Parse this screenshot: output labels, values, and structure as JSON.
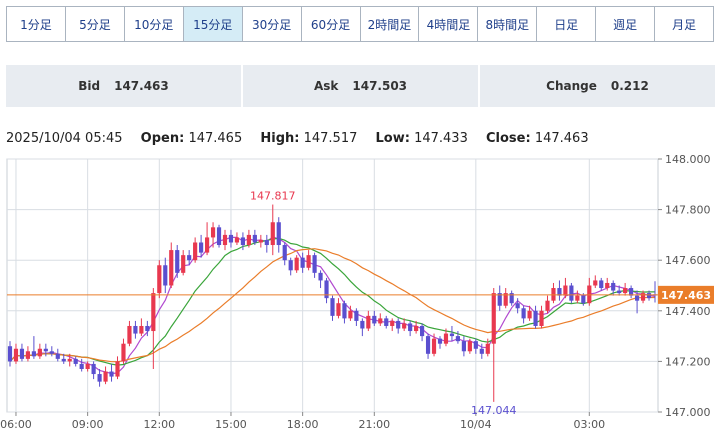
{
  "timeframe_tabs": [
    {
      "label": "1分足",
      "active": false
    },
    {
      "label": "5分足",
      "active": false
    },
    {
      "label": "10分足",
      "active": false
    },
    {
      "label": "15分足",
      "active": true
    },
    {
      "label": "30分足",
      "active": false
    },
    {
      "label": "60分足",
      "active": false
    },
    {
      "label": "2時間足",
      "active": false
    },
    {
      "label": "4時間足",
      "active": false
    },
    {
      "label": "8時間足",
      "active": false
    },
    {
      "label": "日足",
      "active": false
    },
    {
      "label": "週足",
      "active": false
    },
    {
      "label": "月足",
      "active": false
    }
  ],
  "quote": {
    "bid_label": "Bid",
    "bid": "147.463",
    "ask_label": "Ask",
    "ask": "147.503",
    "change_label": "Change",
    "change": "0.212"
  },
  "ohlc": {
    "datetime": "2025/10/04 05:45",
    "open_label": "Open:",
    "open": "147.465",
    "high_label": "High:",
    "high": "147.517",
    "low_label": "Low:",
    "low": "147.433",
    "close_label": "Close:",
    "close": "147.463"
  },
  "colors": {
    "up": "#e8384f",
    "down": "#5a4fcf",
    "ma_short": "#b14ad0",
    "ma_mid": "#3aa53a",
    "ma_long": "#ea7d2a",
    "price_line": "#ea7d2a",
    "grid": "#d8dde3",
    "axis_text": "#555555"
  },
  "chart_data": {
    "type": "candlestick",
    "title": "",
    "ylim": [
      147.0,
      148.0
    ],
    "y_ticks": [
      "148.000",
      "147.800",
      "147.600",
      "147.400",
      "147.200",
      "147.000"
    ],
    "x_tick_labels": [
      "06:00",
      "09:00",
      "12:00",
      "15:00",
      "18:00",
      "21:00",
      "10/04",
      "03:00"
    ],
    "annotations": {
      "high_label": "147.817",
      "low_label": "147.044"
    },
    "current_price": "147.463",
    "grid": true,
    "series_moving_averages": [
      "short",
      "mid",
      "long"
    ],
    "candles": [
      [
        147.26,
        147.2,
        147.28,
        147.18
      ],
      [
        147.2,
        147.25,
        147.27,
        147.19
      ],
      [
        147.25,
        147.21,
        147.27,
        147.2
      ],
      [
        147.21,
        147.24,
        147.26,
        147.2
      ],
      [
        147.24,
        147.22,
        147.3,
        147.21
      ],
      [
        147.22,
        147.25,
        147.27,
        147.21
      ],
      [
        147.25,
        147.24,
        147.27,
        147.22
      ],
      [
        147.24,
        147.23,
        147.26,
        147.22
      ],
      [
        147.23,
        147.21,
        147.25,
        147.2
      ],
      [
        147.21,
        147.2,
        147.23,
        147.19
      ],
      [
        147.2,
        147.21,
        147.23,
        147.18
      ],
      [
        147.21,
        147.19,
        147.22,
        147.18
      ],
      [
        147.19,
        147.17,
        147.21,
        147.16
      ],
      [
        147.17,
        147.19,
        147.2,
        147.16
      ],
      [
        147.19,
        147.15,
        147.2,
        147.13
      ],
      [
        147.15,
        147.12,
        147.17,
        147.1
      ],
      [
        147.12,
        147.16,
        147.18,
        147.11
      ],
      [
        147.16,
        147.14,
        147.19,
        147.12
      ],
      [
        147.14,
        147.2,
        147.22,
        147.13
      ],
      [
        147.2,
        147.27,
        147.29,
        147.19
      ],
      [
        147.27,
        147.34,
        147.36,
        147.26
      ],
      [
        147.34,
        147.31,
        147.36,
        147.29
      ],
      [
        147.31,
        147.34,
        147.37,
        147.3
      ],
      [
        147.34,
        147.32,
        147.36,
        147.3
      ],
      [
        147.32,
        147.47,
        147.49,
        147.17
      ],
      [
        147.47,
        147.58,
        147.6,
        147.45
      ],
      [
        147.58,
        147.5,
        147.61,
        147.47
      ],
      [
        147.5,
        147.64,
        147.67,
        147.49
      ],
      [
        147.64,
        147.55,
        147.66,
        147.53
      ],
      [
        147.55,
        147.62,
        147.64,
        147.54
      ],
      [
        147.62,
        147.6,
        147.64,
        147.58
      ],
      [
        147.6,
        147.67,
        147.69,
        147.59
      ],
      [
        147.67,
        147.63,
        147.7,
        147.61
      ],
      [
        147.63,
        147.69,
        147.75,
        147.62
      ],
      [
        147.69,
        147.73,
        147.75,
        147.65
      ],
      [
        147.73,
        147.66,
        147.74,
        147.65
      ],
      [
        147.66,
        147.7,
        147.72,
        147.64
      ],
      [
        147.7,
        147.67,
        147.72,
        147.65
      ],
      [
        147.67,
        147.69,
        147.71,
        147.66
      ],
      [
        147.69,
        147.66,
        147.71,
        147.64
      ],
      [
        147.66,
        147.7,
        147.72,
        147.65
      ],
      [
        147.7,
        147.67,
        147.72,
        147.66
      ],
      [
        147.67,
        147.68,
        147.7,
        147.65
      ],
      [
        147.68,
        147.66,
        147.7,
        147.63
      ],
      [
        147.66,
        147.75,
        147.82,
        147.62
      ],
      [
        147.75,
        147.66,
        147.77,
        147.63
      ],
      [
        147.66,
        147.6,
        147.67,
        147.58
      ],
      [
        147.6,
        147.56,
        147.61,
        147.54
      ],
      [
        147.56,
        147.61,
        147.62,
        147.55
      ],
      [
        147.61,
        147.57,
        147.63,
        147.55
      ],
      [
        147.57,
        147.62,
        147.64,
        147.56
      ],
      [
        147.62,
        147.55,
        147.63,
        147.53
      ],
      [
        147.55,
        147.52,
        147.56,
        147.49
      ],
      [
        147.52,
        147.45,
        147.53,
        147.43
      ],
      [
        147.45,
        147.38,
        147.46,
        147.36
      ],
      [
        147.38,
        147.43,
        147.45,
        147.37
      ],
      [
        147.43,
        147.37,
        147.44,
        147.35
      ],
      [
        147.37,
        147.4,
        147.42,
        147.36
      ],
      [
        147.4,
        147.36,
        147.41,
        147.34
      ],
      [
        147.36,
        147.33,
        147.37,
        147.3
      ],
      [
        147.33,
        147.38,
        147.4,
        147.32
      ],
      [
        147.38,
        147.35,
        147.4,
        147.34
      ],
      [
        147.35,
        147.37,
        147.39,
        147.34
      ],
      [
        147.37,
        147.34,
        147.38,
        147.33
      ],
      [
        147.34,
        147.36,
        147.37,
        147.32
      ],
      [
        147.36,
        147.33,
        147.37,
        147.31
      ],
      [
        147.33,
        147.35,
        147.37,
        147.32
      ],
      [
        147.35,
        147.32,
        147.36,
        147.3
      ],
      [
        147.32,
        147.34,
        147.36,
        147.31
      ],
      [
        147.34,
        147.3,
        147.35,
        147.28
      ],
      [
        147.3,
        147.23,
        147.31,
        147.21
      ],
      [
        147.23,
        147.29,
        147.31,
        147.22
      ],
      [
        147.29,
        147.27,
        147.3,
        147.25
      ],
      [
        147.27,
        147.31,
        147.33,
        147.26
      ],
      [
        147.31,
        147.3,
        147.34,
        147.28
      ],
      [
        147.3,
        147.28,
        147.32,
        147.27
      ],
      [
        147.28,
        147.24,
        147.3,
        147.22
      ],
      [
        147.24,
        147.28,
        147.29,
        147.23
      ],
      [
        147.28,
        147.25,
        147.29,
        147.23
      ],
      [
        147.25,
        147.23,
        147.27,
        147.21
      ],
      [
        147.23,
        147.27,
        147.29,
        147.22
      ],
      [
        147.27,
        147.47,
        147.49,
        147.04
      ],
      [
        147.47,
        147.42,
        147.5,
        147.4
      ],
      [
        147.42,
        147.47,
        147.49,
        147.41
      ],
      [
        147.47,
        147.43,
        147.48,
        147.42
      ],
      [
        147.43,
        147.41,
        147.45,
        147.39
      ],
      [
        147.41,
        147.37,
        147.42,
        147.35
      ],
      [
        147.37,
        147.4,
        147.42,
        147.36
      ],
      [
        147.4,
        147.34,
        147.42,
        147.33
      ],
      [
        147.34,
        147.4,
        147.42,
        147.33
      ],
      [
        147.4,
        147.44,
        147.46,
        147.39
      ],
      [
        147.44,
        147.49,
        147.51,
        147.43
      ],
      [
        147.49,
        147.46,
        147.52,
        147.44
      ],
      [
        147.46,
        147.5,
        147.53,
        147.45
      ],
      [
        147.5,
        147.44,
        147.51,
        147.43
      ],
      [
        147.44,
        147.46,
        147.48,
        147.43
      ],
      [
        147.46,
        147.43,
        147.47,
        147.42
      ],
      [
        147.43,
        147.5,
        147.53,
        147.42
      ],
      [
        147.5,
        147.52,
        147.54,
        147.49
      ],
      [
        147.52,
        147.49,
        147.53,
        147.48
      ],
      [
        147.49,
        147.51,
        147.53,
        147.48
      ],
      [
        147.51,
        147.48,
        147.52,
        147.46
      ],
      [
        147.48,
        147.47,
        147.5,
        147.46
      ],
      [
        147.47,
        147.49,
        147.51,
        147.46
      ],
      [
        147.49,
        147.46,
        147.5,
        147.45
      ],
      [
        147.46,
        147.44,
        147.48,
        147.39
      ],
      [
        147.44,
        147.47,
        147.48,
        147.43
      ],
      [
        147.47,
        147.45,
        147.48,
        147.44
      ],
      [
        147.465,
        147.463,
        147.517,
        147.433
      ]
    ]
  }
}
